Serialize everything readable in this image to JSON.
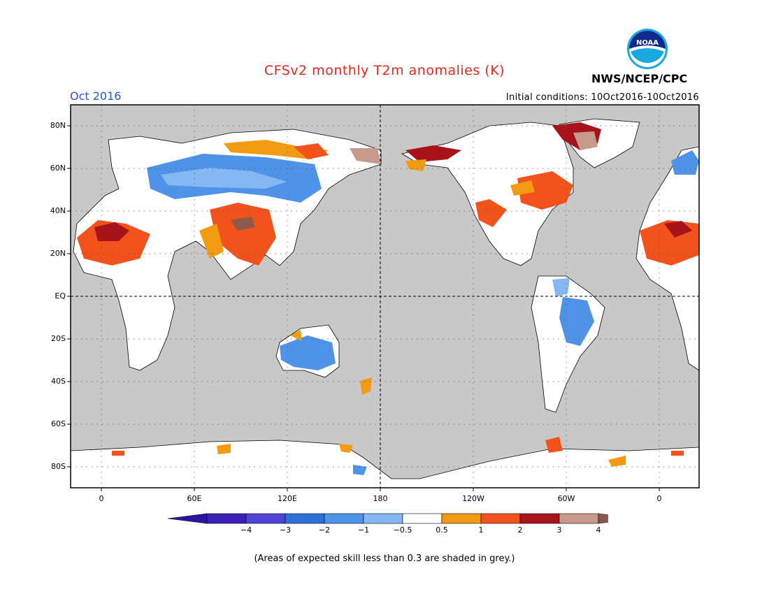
{
  "title": "CFSv2 monthly T2m anomalies (K)",
  "month": "Oct 2016",
  "agency": "NWS/NCEP/CPC",
  "logo_text": "NOAA",
  "initial_conditions": "Initial conditions: 10Oct2016-10Oct2016",
  "footnote": "(Areas of expected skill less than 0.3 are shaded in grey.)",
  "lat_ticks": [
    "80N",
    "60N",
    "40N",
    "20N",
    "EQ",
    "20S",
    "40S",
    "60S",
    "80S"
  ],
  "lon_ticks": [
    "0",
    "60E",
    "120E",
    "180",
    "120W",
    "60W",
    "0"
  ],
  "colorbar": {
    "labels": [
      "−4",
      "−3",
      "−2",
      "−1",
      "−0.5",
      "0.5",
      "1",
      "2",
      "3",
      "4"
    ],
    "colors": [
      "#3a1fb8",
      "#4f44d6",
      "#2f6fd8",
      "#4e93e8",
      "#85b8f2",
      "#ffffff",
      "#f29a12",
      "#f2521c",
      "#a8131a",
      "#c59a8a"
    ],
    "under_color": "#2c14a0",
    "over_color": "#8a5a4a"
  },
  "map": {
    "ocean_color": "#c8c8c8",
    "land_color": "#ffffff"
  }
}
